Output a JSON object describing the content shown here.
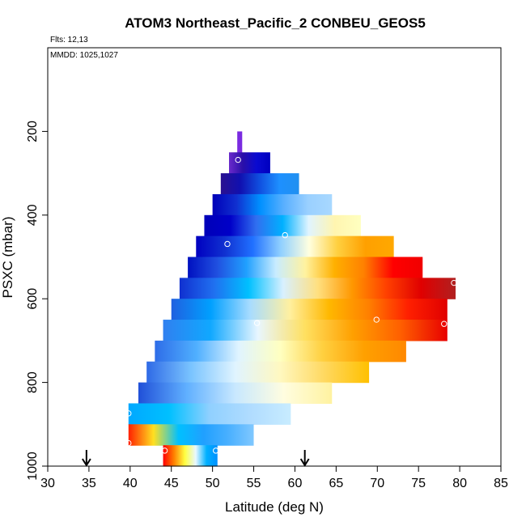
{
  "chart_data": {
    "type": "heatmap",
    "title": "ATOM3 Northeast_Pacific_2 CONBEU_GEOS5",
    "flights_note": "Flts: 12,13",
    "dates_note": "MMDD: 1025,1027",
    "xlabel": "Latitude (deg N)",
    "ylabel": "PSXC (mbar)",
    "xlim": [
      30,
      85
    ],
    "ylim": [
      1000,
      0
    ],
    "x_ticks": [
      "30",
      "35",
      "40",
      "45",
      "50",
      "55",
      "60",
      "65",
      "70",
      "75",
      "80",
      "85"
    ],
    "y_ticks": [
      "200",
      "400",
      "600",
      "800",
      "1000"
    ],
    "arrows_at_latitude": [
      34.7,
      61.2
    ],
    "rows": [
      {
        "p": 225,
        "lat_start": 53.0,
        "lat_end": 53.6,
        "stops": [
          "#7a2be0",
          "#7a2be0"
        ]
      },
      {
        "p": 275,
        "lat_start": 52.0,
        "lat_end": 57.0,
        "stops": [
          "#6a2acb",
          "#2a0fa8",
          "#0a0ad0",
          "#0000c0"
        ]
      },
      {
        "p": 325,
        "lat_start": 51.0,
        "lat_end": 60.5,
        "stops": [
          "#2a1090",
          "#1010b0",
          "#1050e0",
          "#1e90ff",
          "#2090f0"
        ]
      },
      {
        "p": 375,
        "lat_start": 50.0,
        "lat_end": 64.5,
        "stops": [
          "#0000b8",
          "#1030d0",
          "#0090ff",
          "#5ab0ff",
          "#9ad0ff",
          "#a8d8ff"
        ]
      },
      {
        "p": 425,
        "lat_start": 49.0,
        "lat_end": 68.0,
        "stops": [
          "#0000b8",
          "#0000c8",
          "#3070f0",
          "#00b0ff",
          "#e0f4ff",
          "#fff5b0",
          "#ffffc0"
        ]
      },
      {
        "p": 475,
        "lat_start": 48.0,
        "lat_end": 72.0,
        "stops": [
          "#0000c0",
          "#1030d0",
          "#2070ff",
          "#90d0ff",
          "#ffffe0",
          "#ffd040",
          "#ffa000",
          "#ffa800"
        ]
      },
      {
        "p": 525,
        "lat_start": 47.0,
        "lat_end": 75.5,
        "stops": [
          "#0010c0",
          "#2050e0",
          "#20a0ff",
          "#c8ecff",
          "#fff2a0",
          "#ffb000",
          "#ff8000",
          "#ff0000",
          "#f00000"
        ]
      },
      {
        "p": 575,
        "lat_start": 46.0,
        "lat_end": 79.5,
        "stops": [
          "#1030d0",
          "#2070f0",
          "#00c0ff",
          "#d8f0ff",
          "#ffe080",
          "#ff9800",
          "#ff4000",
          "#e00000",
          "#b02020"
        ]
      },
      {
        "p": 625,
        "lat_start": 45.0,
        "lat_end": 78.5,
        "stops": [
          "#2060e0",
          "#00a0ff",
          "#a8dcff",
          "#fff0a0",
          "#ffb800",
          "#ff8000",
          "#ff2000",
          "#e00000"
        ]
      },
      {
        "p": 675,
        "lat_start": 44.0,
        "lat_end": 78.5,
        "stops": [
          "#3080f0",
          "#10a8ff",
          "#e8f6ff",
          "#ffe060",
          "#ffa000",
          "#ff6000",
          "#e80000"
        ]
      },
      {
        "p": 725,
        "lat_start": 43.0,
        "lat_end": 73.5,
        "stops": [
          "#2e6de8",
          "#50b0ff",
          "#e0f4ff",
          "#ffffc0",
          "#ffd040",
          "#ffa000",
          "#ff8800"
        ]
      },
      {
        "p": 775,
        "lat_start": 42.0,
        "lat_end": 69.0,
        "stops": [
          "#2f6ae6",
          "#7ac4ff",
          "#e0f4ff",
          "#fff8c0",
          "#ffd860",
          "#ffc000"
        ]
      },
      {
        "p": 825,
        "lat_start": 41.0,
        "lat_end": 64.5,
        "stops": [
          "#2050d8",
          "#60b0ff",
          "#c8e8ff",
          "#fffde0",
          "#fff2a0"
        ]
      },
      {
        "p": 875,
        "lat_start": 39.8,
        "lat_end": 59.5,
        "stops": [
          "#00a8ff",
          "#00c0ff",
          "#90d0ff",
          "#b0dcff",
          "#c8ecff"
        ]
      },
      {
        "p": 925,
        "lat_start": 39.8,
        "lat_end": 55.0,
        "stops": [
          "#ff2000",
          "#ffe020",
          "#00c0ff",
          "#20a0ff",
          "#4ab0ff",
          "#80c8ff"
        ]
      },
      {
        "p": 975,
        "lat_start": 44.0,
        "lat_end": 50.6,
        "stops": [
          "#ff0000",
          "#ff8000",
          "#ffff40",
          "#e8f8ff",
          "#00b0ff",
          "#0090ff"
        ]
      }
    ],
    "markers": [
      {
        "lat": 53.1,
        "p": 268
      },
      {
        "lat": 51.8,
        "p": 469
      },
      {
        "lat": 58.8,
        "p": 448
      },
      {
        "lat": 55.4,
        "p": 658
      },
      {
        "lat": 69.9,
        "p": 650
      },
      {
        "lat": 78.1,
        "p": 660
      },
      {
        "lat": 79.3,
        "p": 562
      },
      {
        "lat": 39.8,
        "p": 874
      },
      {
        "lat": 39.8,
        "p": 945
      },
      {
        "lat": 44.2,
        "p": 963
      },
      {
        "lat": 50.4,
        "p": 963
      }
    ]
  }
}
